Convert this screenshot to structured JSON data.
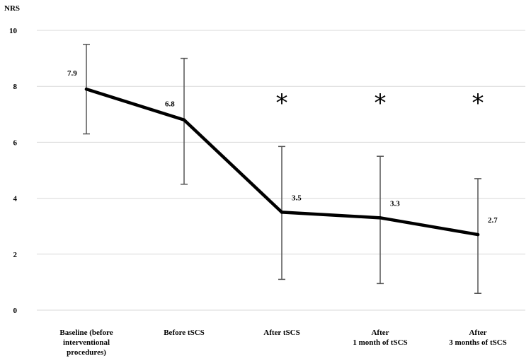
{
  "chart_data": {
    "type": "line",
    "ylabel": "NRS",
    "ylim": [
      0,
      10
    ],
    "yticks": [
      0,
      2,
      4,
      6,
      8,
      10
    ],
    "grid": true,
    "categories": [
      [
        "Baseline (before",
        "interventional",
        "procedures)"
      ],
      [
        "Before tSCS"
      ],
      [
        "After tSCS"
      ],
      [
        "After",
        "1 month of tSCS"
      ],
      [
        "After",
        "3 months of tSCS"
      ]
    ],
    "values": [
      7.9,
      6.8,
      3.5,
      3.3,
      2.7
    ],
    "value_labels": [
      "7.9",
      "6.8",
      "3.5",
      "3.3",
      "2.7"
    ],
    "error_low": [
      6.3,
      4.5,
      1.1,
      0.95,
      0.6
    ],
    "error_high": [
      9.5,
      9.0,
      5.85,
      5.5,
      4.7
    ],
    "significance": [
      "",
      "",
      "*",
      "*",
      "*"
    ],
    "colors": {
      "line": "#000000",
      "error": "#555555",
      "grid": "#d9d9d9"
    }
  }
}
